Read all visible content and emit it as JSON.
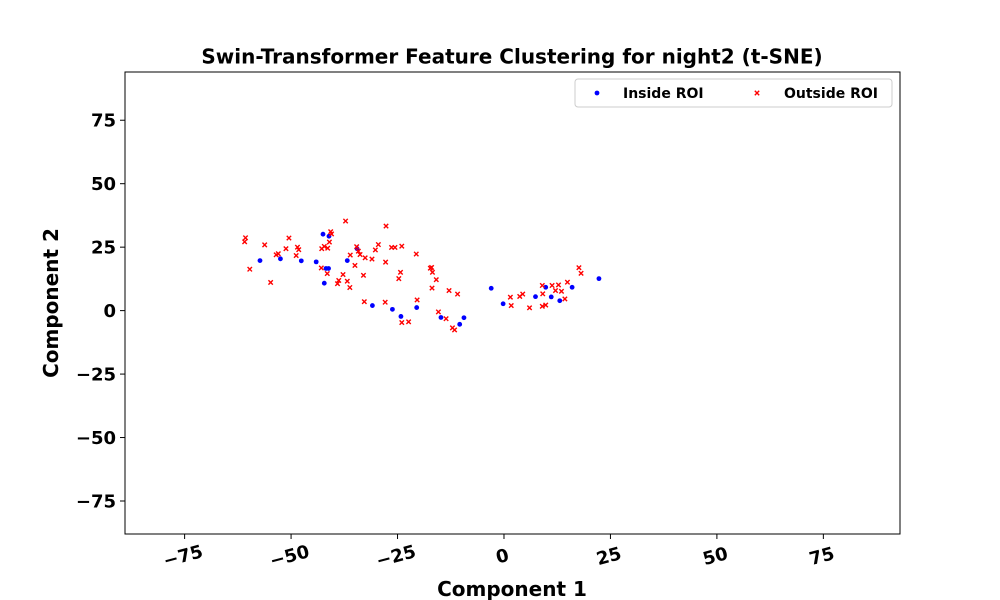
{
  "chart_data": {
    "type": "scatter",
    "title": "Swin-Transformer Feature Clustering for night2 (t-SNE)",
    "xlabel": "Component 1",
    "ylabel": "Component 2",
    "xlim": [
      -89,
      93
    ],
    "ylim": [
      -88,
      94
    ],
    "xticks": [
      -75,
      -50,
      -25,
      0,
      25,
      50,
      75
    ],
    "xtick_labels": [
      "−75",
      "−50",
      "−25",
      "0",
      "25",
      "50",
      "75"
    ],
    "yticks": [
      -75,
      -50,
      -25,
      0,
      25,
      50,
      75
    ],
    "ytick_labels": [
      "−75",
      "−50",
      "−25",
      "0",
      "25",
      "50",
      "75"
    ],
    "grid": false,
    "legend_position": "upper right",
    "series": [
      {
        "name": "Inside ROI",
        "marker": "dot",
        "color": "#0000ff",
        "points": [
          [
            -57.3,
            19.7
          ],
          [
            -52.5,
            20.4
          ],
          [
            -47.6,
            19.6
          ],
          [
            -44.1,
            19.2
          ],
          [
            -42.5,
            30.1
          ],
          [
            -41.8,
            16.6
          ],
          [
            -41.2,
            16.6
          ],
          [
            -41.1,
            29.3
          ],
          [
            -42.2,
            10.8
          ],
          [
            -36.8,
            19.7
          ],
          [
            -34.5,
            24.4
          ],
          [
            -30.9,
            2.0
          ],
          [
            -26.2,
            0.5
          ],
          [
            -24.2,
            -2.3
          ],
          [
            -20.5,
            1.2
          ],
          [
            -14.8,
            -2.7
          ],
          [
            -10.4,
            -5.4
          ],
          [
            -9.4,
            -2.8
          ],
          [
            -3.0,
            8.8
          ],
          [
            -0.2,
            2.7
          ],
          [
            7.4,
            5.5
          ],
          [
            9.8,
            9.2
          ],
          [
            11.1,
            5.4
          ],
          [
            13.1,
            3.9
          ],
          [
            16.0,
            9.2
          ],
          [
            22.3,
            12.6
          ]
        ]
      },
      {
        "name": "Outside ROI",
        "marker": "x",
        "color": "#ff0000",
        "points": [
          [
            -60.9,
            27.1
          ],
          [
            -60.7,
            28.7
          ],
          [
            -59.7,
            16.3
          ],
          [
            -56.2,
            25.9
          ],
          [
            -54.8,
            11.1
          ],
          [
            -53.5,
            22.0
          ],
          [
            -53.0,
            22.4
          ],
          [
            -51.2,
            24.4
          ],
          [
            -50.5,
            28.6
          ],
          [
            -48.8,
            21.7
          ],
          [
            -48.5,
            25.0
          ],
          [
            -48.2,
            24.0
          ],
          [
            -42.9,
            16.8
          ],
          [
            -42.8,
            24.4
          ],
          [
            -42.2,
            25.3
          ],
          [
            -41.4,
            24.6
          ],
          [
            -41.5,
            14.6
          ],
          [
            -41.0,
            27.0
          ],
          [
            -40.7,
            31.1
          ],
          [
            -40.5,
            30.2
          ],
          [
            -39.1,
            10.6
          ],
          [
            -38.8,
            11.9
          ],
          [
            -37.8,
            14.2
          ],
          [
            -37.2,
            35.3
          ],
          [
            -36.8,
            11.6
          ],
          [
            -36.2,
            9.1
          ],
          [
            -36.1,
            21.9
          ],
          [
            -35.0,
            17.8
          ],
          [
            -34.6,
            25.2
          ],
          [
            -34.2,
            23.4
          ],
          [
            -33.8,
            22.1
          ],
          [
            -33.0,
            13.9
          ],
          [
            -32.8,
            3.5
          ],
          [
            -32.6,
            20.8
          ],
          [
            -31.0,
            20.3
          ],
          [
            -30.2,
            23.9
          ],
          [
            -29.5,
            26.0
          ],
          [
            -27.8,
            19.1
          ],
          [
            -27.7,
            33.3
          ],
          [
            -27.9,
            3.3
          ],
          [
            -26.4,
            24.9
          ],
          [
            -25.6,
            24.9
          ],
          [
            -24.7,
            12.6
          ],
          [
            -24.3,
            15.1
          ],
          [
            -24.0,
            25.4
          ],
          [
            -24.0,
            -4.7
          ],
          [
            -22.4,
            -4.4
          ],
          [
            -20.6,
            22.3
          ],
          [
            -20.4,
            4.2
          ],
          [
            -17.3,
            16.7
          ],
          [
            -17.0,
            17.0
          ],
          [
            -16.9,
            8.9
          ],
          [
            -16.8,
            15.1
          ],
          [
            -15.9,
            12.2
          ],
          [
            -15.4,
            -0.5
          ],
          [
            -13.6,
            -3.2
          ],
          [
            -12.9,
            7.9
          ],
          [
            -12.1,
            -6.8
          ],
          [
            -11.6,
            -7.6
          ],
          [
            -10.9,
            6.5
          ],
          [
            1.7,
            2.0
          ],
          [
            1.5,
            5.3
          ],
          [
            3.7,
            5.6
          ],
          [
            4.4,
            6.5
          ],
          [
            6.0,
            1.1
          ],
          [
            9.0,
            1.7
          ],
          [
            9.1,
            6.6
          ],
          [
            9.0,
            9.9
          ],
          [
            9.8,
            2.2
          ],
          [
            11.3,
            9.9
          ],
          [
            12.1,
            7.9
          ],
          [
            12.8,
            10.1
          ],
          [
            13.5,
            7.6
          ],
          [
            14.3,
            4.6
          ],
          [
            14.9,
            11.2
          ],
          [
            17.6,
            16.9
          ],
          [
            18.1,
            14.7
          ]
        ]
      }
    ]
  }
}
